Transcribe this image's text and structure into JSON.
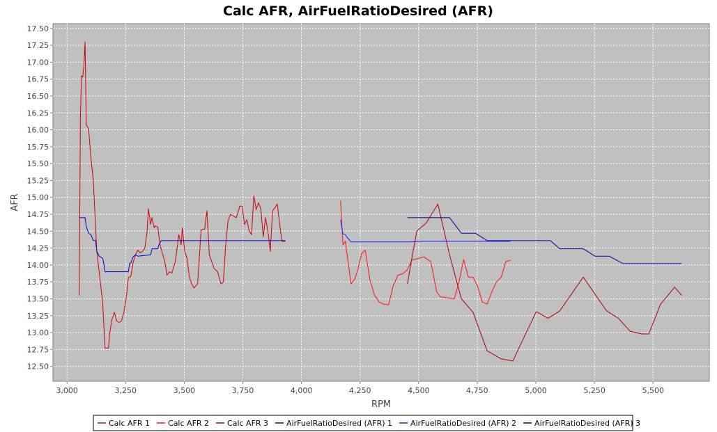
{
  "chart_data": {
    "type": "line",
    "title": "Calc AFR, AirFuelRatioDesired (AFR)",
    "xlabel": "RPM",
    "ylabel": "AFR",
    "xlim": [
      2940,
      5740
    ],
    "ylim": [
      12.28,
      17.57
    ],
    "x_ticks": [
      3000,
      3250,
      3500,
      3750,
      4000,
      4250,
      4500,
      4750,
      5000,
      5250,
      5500
    ],
    "x_tick_labels": [
      "3,000",
      "3,250",
      "3,500",
      "3,750",
      "4,000",
      "4,250",
      "4,500",
      "4,750",
      "5,000",
      "5,250",
      "5,500"
    ],
    "y_ticks": [
      12.5,
      12.75,
      13.0,
      13.25,
      13.5,
      13.75,
      14.0,
      14.25,
      14.5,
      14.75,
      15.0,
      15.25,
      15.5,
      15.75,
      16.0,
      16.25,
      16.5,
      16.75,
      17.0,
      17.25,
      17.5
    ],
    "y_tick_labels": [
      "12.50",
      "12.75",
      "13.00",
      "13.25",
      "13.50",
      "13.75",
      "14.00",
      "14.25",
      "14.50",
      "14.75",
      "15.00",
      "15.25",
      "15.50",
      "15.75",
      "16.00",
      "16.25",
      "16.50",
      "16.75",
      "17.00",
      "17.25",
      "17.50"
    ],
    "grid": true,
    "legend_position": "bottom",
    "series": [
      {
        "name": "Calc AFR 1",
        "color": "#cc0000",
        "x": [
          3052,
          3057,
          3062,
          3067,
          3072,
          3077,
          3082,
          3092,
          3102,
          3112,
          3127,
          3137,
          3152,
          3162,
          3170,
          3177,
          3182,
          3192,
          3202,
          3212,
          3222,
          3232,
          3242,
          3252,
          3262,
          3272,
          3282,
          3292,
          3302,
          3312,
          3322,
          3332,
          3342,
          3347,
          3357,
          3362,
          3372,
          3377,
          3387,
          3397,
          3407,
          3417,
          3427,
          3437,
          3447,
          3462,
          3477,
          3487,
          3492,
          3502,
          3512,
          3522,
          3532,
          3542,
          3557,
          3572,
          3587,
          3597,
          3607,
          3617,
          3627,
          3642,
          3657,
          3667,
          3677,
          3687,
          3697,
          3712,
          3722,
          3737,
          3747,
          3757,
          3767,
          3777,
          3787,
          3797,
          3807,
          3817,
          3827,
          3837,
          3847,
          3857,
          3867,
          3877,
          3887,
          3897,
          3907,
          3917,
          3927,
          3932
        ],
        "y": [
          13.55,
          16.2,
          16.8,
          16.78,
          16.95,
          17.3,
          16.07,
          16.02,
          15.58,
          15.25,
          14.2,
          13.9,
          13.45,
          12.77,
          12.77,
          12.77,
          12.99,
          13.2,
          13.3,
          13.17,
          13.15,
          13.17,
          13.29,
          13.5,
          13.81,
          13.83,
          14.04,
          14.15,
          14.22,
          14.18,
          14.2,
          14.25,
          14.5,
          14.83,
          14.6,
          14.7,
          14.55,
          14.58,
          14.56,
          14.3,
          14.17,
          14.05,
          13.85,
          13.9,
          13.88,
          14.05,
          14.45,
          14.3,
          14.55,
          14.2,
          14.1,
          13.82,
          13.72,
          13.66,
          13.72,
          14.52,
          14.53,
          14.8,
          14.15,
          14.05,
          13.95,
          13.9,
          13.72,
          13.75,
          14.3,
          14.65,
          14.75,
          14.72,
          14.7,
          14.87,
          14.87,
          14.6,
          14.67,
          14.5,
          14.45,
          15.02,
          14.82,
          14.92,
          14.82,
          14.42,
          14.7,
          14.5,
          14.2,
          14.8,
          14.85,
          14.9,
          14.6,
          14.35,
          14.35,
          14.35
        ]
      },
      {
        "name": "Calc AFR 2",
        "color": "#ff1010",
        "x": [
          4167,
          4172,
          4177,
          4187,
          4212,
          4227,
          4242,
          4257,
          4272,
          4292,
          4312,
          4332,
          4352,
          4372,
          4392,
          4412,
          4432,
          4452,
          4472,
          4482,
          4502,
          4522,
          4552,
          4577,
          4592,
          4612,
          4632,
          4652,
          4672,
          4692,
          4712,
          4732,
          4752,
          4772,
          4792,
          4812,
          4832,
          4852,
          4872,
          4892
        ],
        "y": [
          14.95,
          14.6,
          14.3,
          14.35,
          13.72,
          13.79,
          13.95,
          14.17,
          14.22,
          13.78,
          13.55,
          13.45,
          13.42,
          13.41,
          13.7,
          13.85,
          13.87,
          13.93,
          14.08,
          14.08,
          14.1,
          14.12,
          14.05,
          13.6,
          13.53,
          13.52,
          13.51,
          13.5,
          13.75,
          14.08,
          13.82,
          13.82,
          13.68,
          13.45,
          13.42,
          13.6,
          13.75,
          13.82,
          14.05,
          14.07
        ]
      },
      {
        "name": "Calc AFR 3",
        "color": "#aa0000",
        "x": [
          4452,
          4472,
          4492,
          4532,
          4582,
          4632,
          4682,
          4732,
          4792,
          4852,
          4902,
          4952,
          5002,
          5052,
          5102,
          5152,
          5202,
          5252,
          5302,
          5352,
          5402,
          5452,
          5482,
          5532,
          5592,
          5622
        ],
        "y": [
          13.72,
          14.12,
          14.5,
          14.62,
          14.9,
          14.15,
          13.5,
          13.3,
          12.73,
          12.61,
          12.58,
          12.95,
          13.31,
          13.21,
          13.32,
          13.57,
          13.82,
          13.57,
          13.32,
          13.21,
          13.02,
          12.98,
          12.98,
          13.42,
          13.67,
          13.55
        ]
      },
      {
        "name": "AirFuelRatioDesired (AFR) 1",
        "color": "#0000cc",
        "x": [
          3052,
          3057,
          3077,
          3082,
          3092,
          3102,
          3112,
          3122,
          3127,
          3137,
          3152,
          3157,
          3162,
          3197,
          3262,
          3267,
          3272,
          3282,
          3292,
          3302,
          3357,
          3362,
          3387,
          3392,
          3402,
          3552,
          3757,
          3932
        ],
        "y": [
          14.7,
          14.7,
          14.7,
          14.57,
          14.47,
          14.45,
          14.36,
          14.36,
          14.2,
          14.13,
          14.1,
          14.02,
          13.9,
          13.9,
          13.9,
          14.02,
          14.03,
          14.12,
          14.15,
          14.13,
          14.15,
          14.24,
          14.24,
          14.3,
          14.36,
          14.36,
          14.36,
          14.36
        ]
      },
      {
        "name": "AirFuelRatioDesired (AFR) 2",
        "color": "#1a1aff",
        "x": [
          4167,
          4177,
          4187,
          4197,
          4212,
          4262,
          4362,
          4462,
          4512,
          4612,
          4712,
          4752,
          4782,
          4812,
          4852,
          4892
        ],
        "y": [
          14.67,
          14.46,
          14.45,
          14.4,
          14.34,
          14.34,
          14.34,
          14.34,
          14.35,
          14.35,
          14.35,
          14.35,
          14.35,
          14.35,
          14.35,
          14.35
        ]
      },
      {
        "name": "AirFuelRatioDesired (AFR) 3",
        "color": "#000099",
        "x": [
          4452,
          4552,
          4632,
          4682,
          4742,
          4792,
          4852,
          4952,
          5062,
          5102,
          5202,
          5252,
          5312,
          5372,
          5472,
          5622
        ],
        "y": [
          14.7,
          14.7,
          14.7,
          14.47,
          14.47,
          14.36,
          14.36,
          14.36,
          14.36,
          14.24,
          14.24,
          14.13,
          14.13,
          14.02,
          14.02,
          14.02
        ]
      }
    ]
  }
}
